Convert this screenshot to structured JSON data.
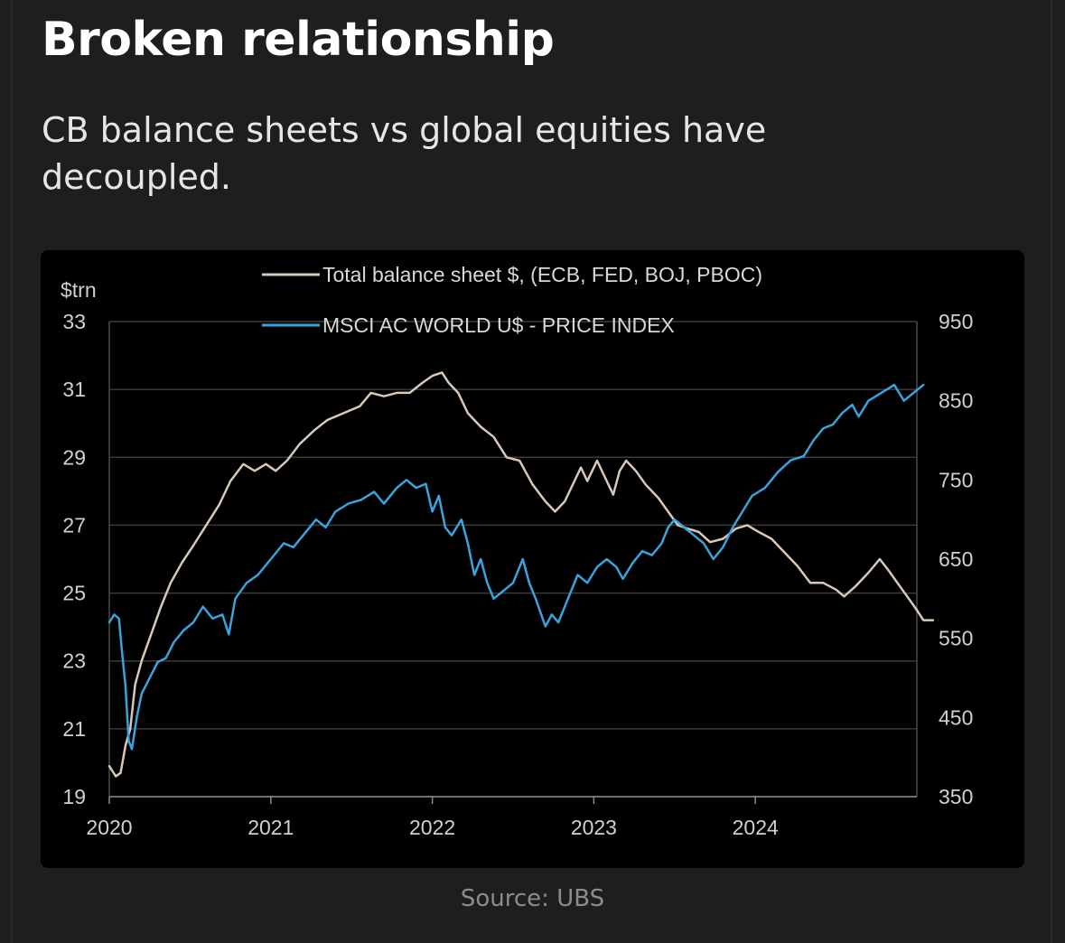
{
  "header": {
    "title": "Broken relationship",
    "subtitle": "CB balance sheets vs global equities have decoupled."
  },
  "footer": {
    "source": "Source: UBS"
  },
  "colors": {
    "balance_sheet": "#d8c8b8",
    "msci": "#3aa3dc",
    "grid": "#3a3a3a",
    "background": "#000000"
  },
  "chart_data": {
    "type": "line",
    "left_axis_unit": "$trn",
    "x_ticks": [
      "2020",
      "2021",
      "2022",
      "2023",
      "2024"
    ],
    "x_range": [
      2020.0,
      2025.0
    ],
    "y_left": {
      "ticks": [
        19,
        21,
        23,
        25,
        27,
        29,
        31,
        33
      ],
      "range": [
        19,
        33
      ]
    },
    "y_right": {
      "ticks": [
        350,
        450,
        550,
        650,
        750,
        850,
        950
      ],
      "range": [
        350,
        950
      ]
    },
    "legend_placement": "top-center",
    "grid": true,
    "series": [
      {
        "name": "Total balance sheet $, (ECB, FED, BOJ, PBOC)",
        "axis": "left",
        "color_key": "balance_sheet",
        "points": [
          [
            2020.0,
            19.9
          ],
          [
            2020.04,
            19.6
          ],
          [
            2020.07,
            19.7
          ],
          [
            2020.1,
            20.5
          ],
          [
            2020.13,
            21.0
          ],
          [
            2020.16,
            22.3
          ],
          [
            2020.2,
            23.0
          ],
          [
            2020.26,
            23.8
          ],
          [
            2020.32,
            24.6
          ],
          [
            2020.38,
            25.3
          ],
          [
            2020.45,
            25.9
          ],
          [
            2020.52,
            26.4
          ],
          [
            2020.6,
            27.0
          ],
          [
            2020.68,
            27.6
          ],
          [
            2020.75,
            28.3
          ],
          [
            2020.83,
            28.8
          ],
          [
            2020.9,
            28.6
          ],
          [
            2020.97,
            28.8
          ],
          [
            2021.03,
            28.6
          ],
          [
            2021.1,
            28.9
          ],
          [
            2021.18,
            29.4
          ],
          [
            2021.27,
            29.8
          ],
          [
            2021.35,
            30.1
          ],
          [
            2021.45,
            30.3
          ],
          [
            2021.55,
            30.5
          ],
          [
            2021.62,
            30.9
          ],
          [
            2021.7,
            30.8
          ],
          [
            2021.78,
            30.9
          ],
          [
            2021.86,
            30.9
          ],
          [
            2021.94,
            31.2
          ],
          [
            2022.0,
            31.4
          ],
          [
            2022.06,
            31.5
          ],
          [
            2022.1,
            31.2
          ],
          [
            2022.16,
            30.9
          ],
          [
            2022.22,
            30.3
          ],
          [
            2022.3,
            29.9
          ],
          [
            2022.38,
            29.6
          ],
          [
            2022.46,
            29.0
          ],
          [
            2022.54,
            28.9
          ],
          [
            2022.62,
            28.2
          ],
          [
            2022.7,
            27.7
          ],
          [
            2022.76,
            27.4
          ],
          [
            2022.82,
            27.7
          ],
          [
            2022.88,
            28.3
          ],
          [
            2022.92,
            28.7
          ],
          [
            2022.96,
            28.3
          ],
          [
            2023.02,
            28.9
          ],
          [
            2023.08,
            28.3
          ],
          [
            2023.12,
            27.9
          ],
          [
            2023.16,
            28.6
          ],
          [
            2023.2,
            28.9
          ],
          [
            2023.26,
            28.6
          ],
          [
            2023.32,
            28.2
          ],
          [
            2023.4,
            27.8
          ],
          [
            2023.46,
            27.4
          ],
          [
            2023.52,
            27.0
          ],
          [
            2023.58,
            26.9
          ],
          [
            2023.65,
            26.8
          ],
          [
            2023.72,
            26.5
          ],
          [
            2023.8,
            26.6
          ],
          [
            2023.88,
            26.9
          ],
          [
            2023.95,
            27.0
          ],
          [
            2024.02,
            26.8
          ],
          [
            2024.1,
            26.6
          ],
          [
            2024.18,
            26.2
          ],
          [
            2024.26,
            25.8
          ],
          [
            2024.34,
            25.3
          ],
          [
            2024.42,
            25.3
          ],
          [
            2024.5,
            25.1
          ],
          [
            2024.55,
            24.9
          ],
          [
            2024.62,
            25.2
          ],
          [
            2024.7,
            25.6
          ],
          [
            2024.77,
            26.0
          ],
          [
            2024.82,
            25.7
          ],
          [
            2024.88,
            25.3
          ],
          [
            2024.94,
            24.9
          ],
          [
            2025.0,
            24.5
          ],
          [
            2025.04,
            24.2
          ],
          [
            2025.1,
            24.2
          ]
        ]
      },
      {
        "name": "MSCI AC WORLD U$ - PRICE INDEX",
        "axis": "right",
        "color_key": "msci",
        "points": [
          [
            2020.0,
            570
          ],
          [
            2020.03,
            580
          ],
          [
            2020.06,
            575
          ],
          [
            2020.08,
            530
          ],
          [
            2020.1,
            490
          ],
          [
            2020.12,
            420
          ],
          [
            2020.14,
            410
          ],
          [
            2020.17,
            450
          ],
          [
            2020.2,
            480
          ],
          [
            2020.25,
            500
          ],
          [
            2020.3,
            520
          ],
          [
            2020.35,
            525
          ],
          [
            2020.4,
            545
          ],
          [
            2020.46,
            560
          ],
          [
            2020.52,
            570
          ],
          [
            2020.58,
            590
          ],
          [
            2020.64,
            575
          ],
          [
            2020.7,
            580
          ],
          [
            2020.74,
            555
          ],
          [
            2020.78,
            600
          ],
          [
            2020.85,
            620
          ],
          [
            2020.92,
            630
          ],
          [
            2021.0,
            650
          ],
          [
            2021.08,
            670
          ],
          [
            2021.14,
            665
          ],
          [
            2021.2,
            680
          ],
          [
            2021.28,
            700
          ],
          [
            2021.34,
            690
          ],
          [
            2021.4,
            710
          ],
          [
            2021.48,
            720
          ],
          [
            2021.56,
            725
          ],
          [
            2021.64,
            735
          ],
          [
            2021.7,
            720
          ],
          [
            2021.78,
            740
          ],
          [
            2021.84,
            750
          ],
          [
            2021.9,
            740
          ],
          [
            2021.96,
            745
          ],
          [
            2022.0,
            710
          ],
          [
            2022.04,
            730
          ],
          [
            2022.08,
            690
          ],
          [
            2022.12,
            680
          ],
          [
            2022.18,
            700
          ],
          [
            2022.22,
            670
          ],
          [
            2022.26,
            630
          ],
          [
            2022.3,
            650
          ],
          [
            2022.34,
            620
          ],
          [
            2022.38,
            600
          ],
          [
            2022.44,
            610
          ],
          [
            2022.5,
            620
          ],
          [
            2022.56,
            650
          ],
          [
            2022.6,
            620
          ],
          [
            2022.64,
            600
          ],
          [
            2022.7,
            565
          ],
          [
            2022.74,
            580
          ],
          [
            2022.78,
            570
          ],
          [
            2022.84,
            600
          ],
          [
            2022.9,
            630
          ],
          [
            2022.96,
            620
          ],
          [
            2023.02,
            640
          ],
          [
            2023.08,
            650
          ],
          [
            2023.14,
            640
          ],
          [
            2023.18,
            625
          ],
          [
            2023.24,
            645
          ],
          [
            2023.3,
            660
          ],
          [
            2023.36,
            655
          ],
          [
            2023.42,
            670
          ],
          [
            2023.46,
            690
          ],
          [
            2023.5,
            700
          ],
          [
            2023.56,
            690
          ],
          [
            2023.62,
            680
          ],
          [
            2023.68,
            670
          ],
          [
            2023.74,
            650
          ],
          [
            2023.8,
            665
          ],
          [
            2023.86,
            690
          ],
          [
            2023.92,
            710
          ],
          [
            2023.98,
            730
          ],
          [
            2024.06,
            740
          ],
          [
            2024.14,
            760
          ],
          [
            2024.22,
            775
          ],
          [
            2024.3,
            780
          ],
          [
            2024.36,
            800
          ],
          [
            2024.42,
            815
          ],
          [
            2024.48,
            820
          ],
          [
            2024.54,
            835
          ],
          [
            2024.6,
            845
          ],
          [
            2024.64,
            830
          ],
          [
            2024.7,
            850
          ],
          [
            2024.78,
            860
          ],
          [
            2024.86,
            870
          ],
          [
            2024.92,
            850
          ],
          [
            2024.98,
            860
          ],
          [
            2025.04,
            870
          ]
        ]
      }
    ]
  }
}
